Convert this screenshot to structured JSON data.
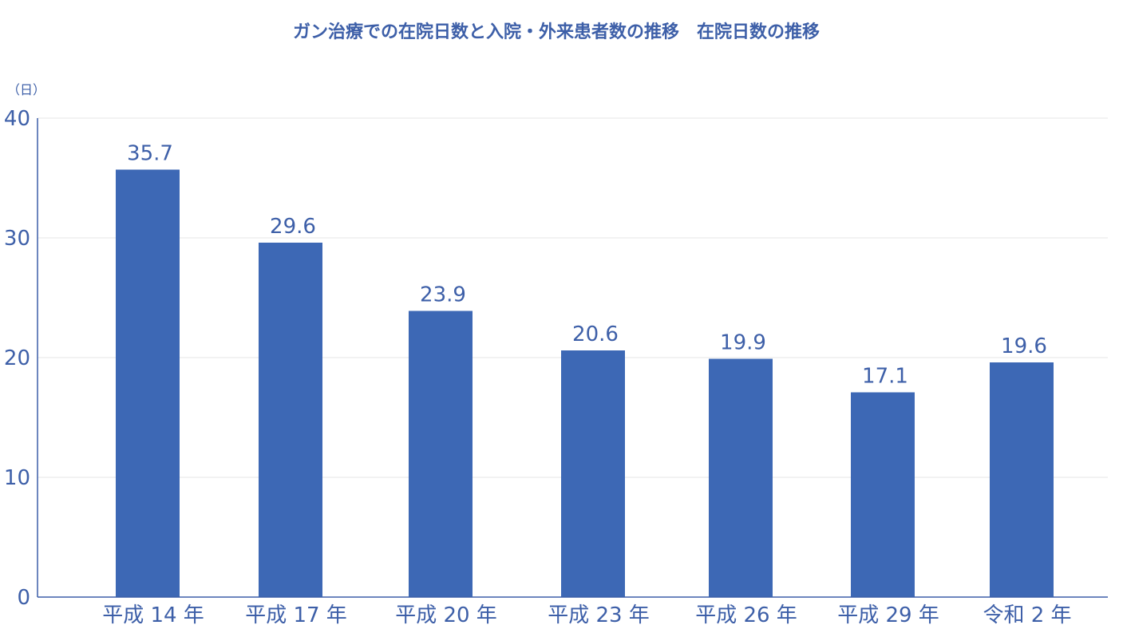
{
  "chart_data": {
    "type": "bar",
    "title": "ガン治療での在院日数と入院・外来患者数の推移　在院日数の推移",
    "ylabel": "（日）",
    "xlabel": "",
    "categories": [
      "平成 14 年",
      "平成 17 年",
      "平成 20 年",
      "平成 23 年",
      "平成 26 年",
      "平成 29 年",
      "令和 2 年"
    ],
    "values": [
      35.7,
      29.6,
      23.9,
      20.6,
      19.9,
      17.1,
      19.6
    ],
    "data_labels": [
      "35.7",
      "29.6",
      "23.9",
      "20.6",
      "19.9",
      "17.1",
      "19.6"
    ],
    "ylim": [
      0,
      40
    ],
    "yticks": [
      0,
      10,
      20,
      30,
      40
    ],
    "grid": true,
    "legend": "none",
    "bar_color": "#3d68b5",
    "text_color": "#3d5fa8"
  }
}
